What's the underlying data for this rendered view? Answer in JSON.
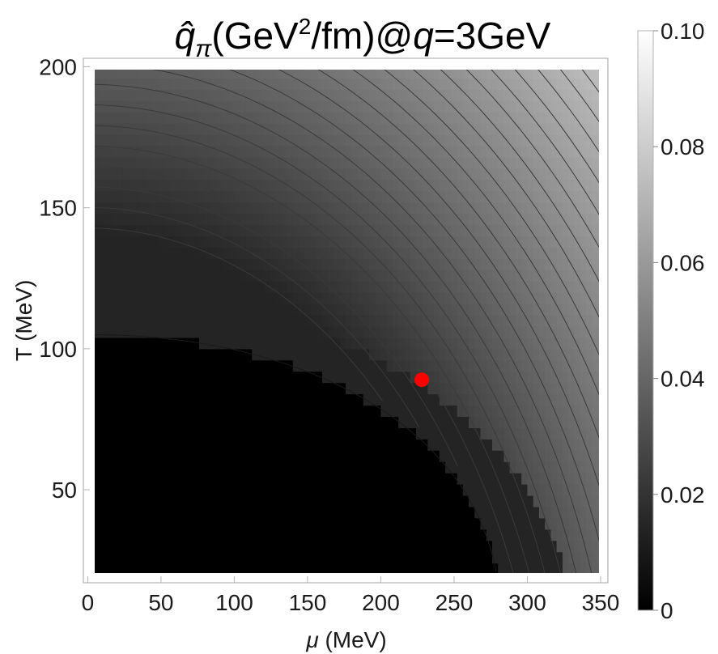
{
  "chart_data": {
    "type": "heatmap",
    "title": {
      "symbol": "q̂",
      "subscript": "π",
      "units_prefix": "(GeV",
      "units_power": "2",
      "units_suffix": "/fm)@",
      "condition_var": "q",
      "condition_value": "=3GeV"
    },
    "xlabel": {
      "symbol": "μ",
      "units": " (MeV)"
    },
    "ylabel": "T (MeV)",
    "xlim": [
      -3,
      355
    ],
    "ylim": [
      17,
      203
    ],
    "data_xrange": [
      0,
      350
    ],
    "data_yrange": [
      20,
      200
    ],
    "x_ticks": [
      0,
      50,
      100,
      150,
      200,
      250,
      300,
      350
    ],
    "y_ticks": [
      50,
      100,
      150,
      200
    ],
    "colorbar": {
      "range": [
        0,
        0.1
      ],
      "ticks": [
        0,
        0.02,
        0.04,
        0.06,
        0.08,
        0.1
      ],
      "tick_labels": [
        "0",
        "0.02",
        "0.04",
        "0.06",
        "0.08",
        "0.10"
      ],
      "colors": [
        "#000000",
        "#ffffff"
      ]
    },
    "phase_boundary_T_at_mu0": 105,
    "phase_boundary_mu_at_Tmin": 282,
    "first_band_T_at_mu0": 120,
    "contour_count": 35,
    "grid": false,
    "marker": {
      "mu": 228,
      "T": 89,
      "color": "#ff0000"
    },
    "line_color": "#3a3a3a"
  }
}
